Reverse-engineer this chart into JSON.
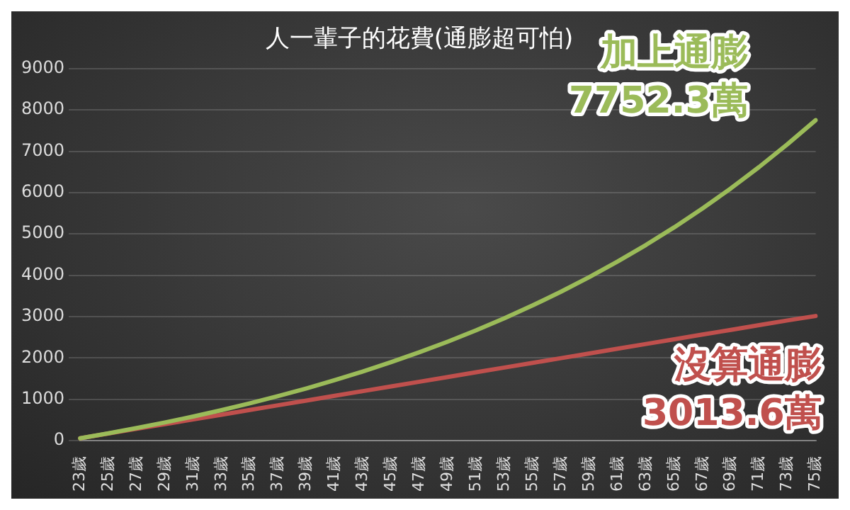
{
  "chart_data": {
    "type": "line",
    "title": "人一輩子的花費(通膨超可怕)",
    "categories": [
      "23歲",
      "25歲",
      "27歲",
      "29歲",
      "31歲",
      "33歲",
      "35歲",
      "37歲",
      "39歲",
      "41歲",
      "43歲",
      "45歲",
      "47歲",
      "49歲",
      "51歲",
      "53歲",
      "55歲",
      "57歲",
      "59歲",
      "61歲",
      "63歲",
      "65歲",
      "67歲",
      "69歲",
      "71歲",
      "73歲",
      "75歲"
    ],
    "series": [
      {
        "name": "加上通膨",
        "color": "#9bbb59",
        "values": [
          57,
          176,
          303,
          439,
          583,
          737,
          901,
          1076,
          1263,
          1462,
          1673,
          1899,
          2139,
          2396,
          2669,
          2961,
          3272,
          3603,
          3956,
          4332,
          4733,
          5160,
          5616,
          6101,
          6619,
          7170,
          7752.3
        ],
        "value_labels": [
          null,
          null,
          null,
          null,
          null,
          null,
          null,
          null,
          null,
          null,
          null,
          null,
          null,
          null,
          null,
          null,
          null,
          null,
          null,
          null,
          null,
          null,
          null,
          null,
          null,
          null,
          "7752.3萬"
        ]
      },
      {
        "name": "沒算通膨",
        "color": "#c0504d",
        "values": [
          57,
          171,
          285,
          399,
          513,
          627,
          741,
          855,
          969,
          1083,
          1197,
          1311,
          1425,
          1539,
          1653,
          1767,
          1881,
          1995,
          2109,
          2223,
          2337,
          2451,
          2565,
          2679,
          2793,
          2907,
          3013.6
        ],
        "value_labels": [
          null,
          null,
          null,
          null,
          null,
          null,
          null,
          null,
          null,
          null,
          null,
          null,
          null,
          null,
          null,
          null,
          null,
          null,
          null,
          null,
          null,
          null,
          null,
          null,
          null,
          null,
          "3013.6萬"
        ]
      }
    ],
    "ylim": [
      0,
      9000
    ],
    "yticks": [
      0,
      1000,
      2000,
      3000,
      4000,
      5000,
      6000,
      7000,
      8000,
      9000
    ],
    "grid": "y",
    "legend": false,
    "marker": "none",
    "line_style": "solid"
  }
}
